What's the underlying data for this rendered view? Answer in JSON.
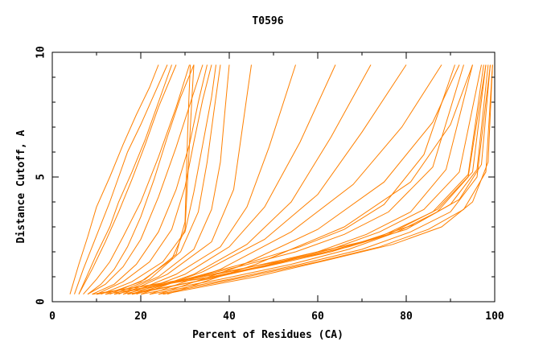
{
  "chart_data": {
    "type": "line",
    "title": "T0596",
    "xlabel": "Percent of Residues (CA)",
    "ylabel": "Distance Cutoff, A",
    "xlim": [
      0,
      100
    ],
    "ylim": [
      0,
      10
    ],
    "xticks": [
      0,
      20,
      40,
      60,
      80,
      100
    ],
    "yticks": [
      0,
      5,
      10
    ],
    "x_tick_labels": [
      "0",
      "20",
      "40",
      "60",
      "80",
      "100"
    ],
    "y_tick_labels": [
      "0",
      "5",
      "10"
    ],
    "grid": false,
    "legend": "none",
    "series_color": "#ff8000",
    "series": [
      {
        "x": [
          4.0,
          6.0,
          8.0,
          10.0,
          13.0,
          16.0,
          19.0,
          22.0,
          24.0
        ],
        "y": [
          0.3,
          1.5,
          2.6,
          3.8,
          5.0,
          6.3,
          7.5,
          8.6,
          9.5
        ]
      },
      {
        "x": [
          5.0,
          7.0,
          9.0,
          11.0,
          13.0,
          15.0,
          17.0,
          20.0,
          23.0,
          26.0
        ],
        "y": [
          0.3,
          1.3,
          2.2,
          3.1,
          4.0,
          5.0,
          6.0,
          7.1,
          8.3,
          9.5
        ]
      },
      {
        "x": [
          6.0,
          8.0,
          10.0,
          13.0,
          15.0,
          18.0,
          21.0,
          24.0,
          27.0
        ],
        "y": [
          0.3,
          1.1,
          1.9,
          3.0,
          4.0,
          5.2,
          6.5,
          8.0,
          9.5
        ]
      },
      {
        "x": [
          6.0,
          9.0,
          12.0,
          15.0,
          18.0,
          21.0,
          24.0,
          28.0
        ],
        "y": [
          0.3,
          1.3,
          2.4,
          3.6,
          4.9,
          6.3,
          7.8,
          9.5
        ]
      },
      {
        "x": [
          7.0,
          10.0,
          13.0,
          16.0,
          20.0,
          24.0,
          28.0,
          31.0
        ],
        "y": [
          0.3,
          0.9,
          1.6,
          2.6,
          4.0,
          5.8,
          7.8,
          9.5
        ]
      },
      {
        "x": [
          8.0,
          11.0,
          14.0,
          17.0,
          20.0,
          23.0,
          26.0,
          29.0,
          32.0
        ],
        "y": [
          0.3,
          0.7,
          1.3,
          2.2,
          3.4,
          4.9,
          6.6,
          8.2,
          9.5
        ]
      },
      {
        "x": [
          8.0,
          12.0,
          16.0,
          20.0,
          24.0,
          28.0,
          32.0,
          34.0
        ],
        "y": [
          0.3,
          0.7,
          1.4,
          2.5,
          4.2,
          6.2,
          8.4,
          9.5
        ]
      },
      {
        "x": [
          9.0,
          14.0,
          19.0,
          24.0,
          28.0,
          31.0,
          33.0,
          35.0
        ],
        "y": [
          0.3,
          0.7,
          1.5,
          2.8,
          4.5,
          6.3,
          8.0,
          9.5
        ]
      },
      {
        "x": [
          10.0,
          16.0,
          22.0,
          27.0,
          30.0,
          32.0,
          34.0,
          36.0
        ],
        "y": [
          0.3,
          0.8,
          1.6,
          2.9,
          4.6,
          6.4,
          8.1,
          9.5
        ]
      },
      {
        "x": [
          11.0,
          18.0,
          25.0,
          30.0,
          32.0,
          34.0,
          36.0,
          37.0
        ],
        "y": [
          0.3,
          0.8,
          1.6,
          2.8,
          4.4,
          6.3,
          8.2,
          9.5
        ]
      },
      {
        "x": [
          12.0,
          20.0,
          27.0,
          30.0,
          30.5,
          31.0,
          31.5,
          32.0
        ],
        "y": [
          0.3,
          0.8,
          1.7,
          2.9,
          4.6,
          6.3,
          8.0,
          9.5
        ]
      },
      {
        "x": [
          13.0,
          21.0,
          28.0,
          30.0,
          30.3,
          30.6,
          30.9,
          31.2
        ],
        "y": [
          0.3,
          0.9,
          1.9,
          3.2,
          5.0,
          6.8,
          8.2,
          9.5
        ]
      },
      {
        "x": [
          14.0,
          22.0,
          29.0,
          33.0,
          35.0,
          36.5,
          38.0
        ],
        "y": [
          0.3,
          0.9,
          2.0,
          3.6,
          5.6,
          7.6,
          9.5
        ]
      },
      {
        "x": [
          15.0,
          24.0,
          32.0,
          36.0,
          38.0,
          39.0,
          40.0
        ],
        "y": [
          0.3,
          1.0,
          2.1,
          3.7,
          5.6,
          7.6,
          9.5
        ]
      },
      {
        "x": [
          16.0,
          26.0,
          36.0,
          41.0,
          43.0,
          45.0
        ],
        "y": [
          0.3,
          1.1,
          2.4,
          4.5,
          7.0,
          9.5
        ]
      },
      {
        "x": [
          17.0,
          28.0,
          38.0,
          44.0,
          49.0,
          55.0
        ],
        "y": [
          0.3,
          1.1,
          2.2,
          3.8,
          6.2,
          9.5
        ]
      },
      {
        "x": [
          18.0,
          30.0,
          40.0,
          48.0,
          56.0,
          64.0
        ],
        "y": [
          0.3,
          1.1,
          2.2,
          3.8,
          6.4,
          9.5
        ]
      },
      {
        "x": [
          19.0,
          32.0,
          44.0,
          54.0,
          63.0,
          72.0
        ],
        "y": [
          0.3,
          1.1,
          2.3,
          4.0,
          6.6,
          9.5
        ]
      },
      {
        "x": [
          20.0,
          34.0,
          48.0,
          60.0,
          70.0,
          80.0
        ],
        "y": [
          0.3,
          1.2,
          2.5,
          4.3,
          6.8,
          9.5
        ]
      },
      {
        "x": [
          22.0,
          38.0,
          54.0,
          68.0,
          79.0,
          88.0
        ],
        "y": [
          0.3,
          1.3,
          2.8,
          4.7,
          7.0,
          9.5
        ]
      },
      {
        "x": [
          24.0,
          42.0,
          60.0,
          75.0,
          86.0,
          92.0
        ],
        "y": [
          0.3,
          1.4,
          2.9,
          4.8,
          7.2,
          9.5
        ]
      },
      {
        "x": [
          26.0,
          46.0,
          66.0,
          81.0,
          90.0,
          95.0
        ],
        "y": [
          0.3,
          1.5,
          3.0,
          4.8,
          7.1,
          9.5
        ]
      },
      {
        "x": [
          18.0,
          30.0,
          45.0,
          56.0,
          66.0,
          75.0,
          84.0,
          91.0
        ],
        "y": [
          0.3,
          0.9,
          1.6,
          2.2,
          2.9,
          3.9,
          5.9,
          9.5
        ]
      },
      {
        "x": [
          16.0,
          28.0,
          42.0,
          55.0,
          66.0,
          76.0,
          86.0,
          93.0
        ],
        "y": [
          0.3,
          0.8,
          1.4,
          2.0,
          2.7,
          3.6,
          5.4,
          9.5
        ]
      },
      {
        "x": [
          17.0,
          32.0,
          47.0,
          60.0,
          71.0,
          81.0,
          89.0,
          95.0
        ],
        "y": [
          0.3,
          0.8,
          1.4,
          2.0,
          2.7,
          3.6,
          5.3,
          9.5
        ]
      },
      {
        "x": [
          18.0,
          35.0,
          50.0,
          63.0,
          74.0,
          84.0,
          92.0,
          97.0
        ],
        "y": [
          0.3,
          0.9,
          1.5,
          2.1,
          2.8,
          3.7,
          5.2,
          9.5
        ]
      },
      {
        "x": [
          20.0,
          38.0,
          54.0,
          67.0,
          78.0,
          87.0,
          94.0,
          98.0
        ],
        "y": [
          0.3,
          0.9,
          1.5,
          2.1,
          2.8,
          3.6,
          5.0,
          9.5
        ]
      },
      {
        "x": [
          22.0,
          40.0,
          56.0,
          70.0,
          81.0,
          90.0,
          96.0,
          99.0
        ],
        "y": [
          0.3,
          0.9,
          1.5,
          2.1,
          2.8,
          3.6,
          5.0,
          9.5
        ]
      },
      {
        "x": [
          24.0,
          44.0,
          60.0,
          74.0,
          85.0,
          93.0,
          98.0,
          99.5
        ],
        "y": [
          0.3,
          1.0,
          1.6,
          2.2,
          2.9,
          3.7,
          5.2,
          9.5
        ]
      },
      {
        "x": [
          25.0,
          46.0,
          63.0,
          77.0,
          88.0,
          95.0,
          98.5,
          99.5
        ],
        "y": [
          0.3,
          1.0,
          1.7,
          2.3,
          3.0,
          4.0,
          5.6,
          9.5
        ]
      },
      {
        "x": [
          14.0,
          25.0,
          40.0,
          55.0,
          70.0,
          82.0,
          92.0,
          97.0,
          99.0
        ],
        "y": [
          0.3,
          0.7,
          1.2,
          1.8,
          2.4,
          3.1,
          4.1,
          5.5,
          9.5
        ]
      },
      {
        "x": [
          12.0,
          22.0,
          36.0,
          52.0,
          67.0,
          80.0,
          90.0,
          96.0,
          98.5
        ],
        "y": [
          0.3,
          0.6,
          1.0,
          1.6,
          2.2,
          2.9,
          3.9,
          5.3,
          9.5
        ]
      },
      {
        "x": [
          10.0,
          20.0,
          33.0,
          48.0,
          63.0,
          76.0,
          87.0,
          95.0,
          98.0
        ],
        "y": [
          0.3,
          0.6,
          0.9,
          1.4,
          2.0,
          2.7,
          3.7,
          5.2,
          9.5
        ]
      },
      {
        "x": [
          9.0,
          18.0,
          30.0,
          45.0,
          60.0,
          74.0,
          86.0,
          94.0,
          97.5
        ],
        "y": [
          0.3,
          0.55,
          0.9,
          1.4,
          1.9,
          2.6,
          3.6,
          5.1,
          9.5
        ]
      }
    ]
  }
}
